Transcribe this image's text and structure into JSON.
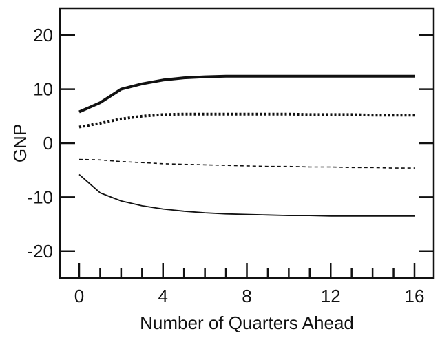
{
  "chart_data": {
    "type": "line",
    "title": "",
    "xlabel": "Number of Quarters Ahead",
    "ylabel": "GNP",
    "xlim": [
      0,
      16
    ],
    "ylim": [
      -25,
      25
    ],
    "x_ticks": [
      0,
      4,
      8,
      12,
      16
    ],
    "x_tick_labels": [
      "0",
      "4",
      "8",
      "12",
      "16"
    ],
    "x_minor_ticks": [
      0,
      1,
      2,
      3,
      4,
      5,
      6,
      7,
      8,
      9,
      10,
      11,
      12,
      13,
      14,
      15,
      16
    ],
    "y_ticks": [
      20,
      10,
      0,
      -10,
      -20
    ],
    "y_tick_labels": [
      "20",
      "10",
      "0",
      "-10",
      "-20"
    ],
    "grid": false,
    "legend": "none",
    "x": [
      0,
      1,
      2,
      3,
      4,
      5,
      6,
      7,
      8,
      9,
      10,
      11,
      12,
      13,
      14,
      15,
      16
    ],
    "series": [
      {
        "style": "solid-thick",
        "color": "#111111",
        "values": [
          5.8,
          7.5,
          10.0,
          11.0,
          11.7,
          12.1,
          12.3,
          12.4,
          12.4,
          12.4,
          12.4,
          12.4,
          12.4,
          12.4,
          12.4,
          12.4,
          12.4
        ]
      },
      {
        "style": "dotted-thick",
        "color": "#111111",
        "values": [
          3.0,
          3.7,
          4.5,
          5.0,
          5.3,
          5.4,
          5.4,
          5.4,
          5.4,
          5.4,
          5.4,
          5.3,
          5.3,
          5.3,
          5.2,
          5.2,
          5.2
        ]
      },
      {
        "style": "dashed-thin",
        "color": "#111111",
        "values": [
          -3.0,
          -3.1,
          -3.4,
          -3.6,
          -3.8,
          -3.9,
          -4.0,
          -4.1,
          -4.2,
          -4.3,
          -4.3,
          -4.4,
          -4.4,
          -4.5,
          -4.5,
          -4.6,
          -4.6
        ]
      },
      {
        "style": "solid-thin",
        "color": "#111111",
        "values": [
          -5.8,
          -9.2,
          -10.7,
          -11.6,
          -12.2,
          -12.6,
          -12.9,
          -13.1,
          -13.2,
          -13.3,
          -13.4,
          -13.4,
          -13.5,
          -13.5,
          -13.5,
          -13.5,
          -13.5
        ]
      }
    ]
  }
}
